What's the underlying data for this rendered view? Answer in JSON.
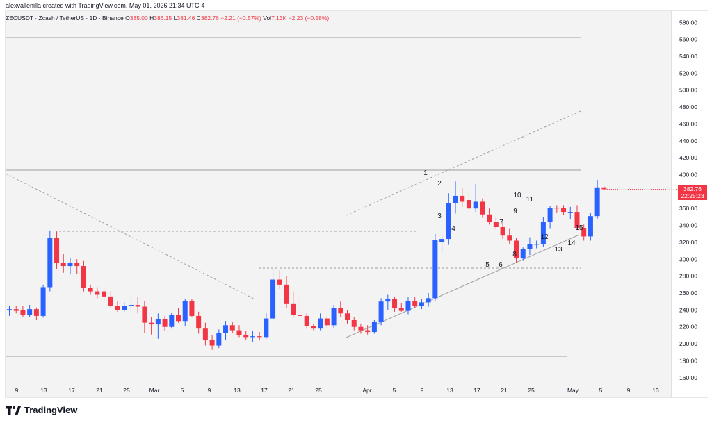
{
  "header": {
    "credit": "alexvallenilla created with TradingView.com, May 01, 2026 21:34 UTC-4",
    "symbol": "ZECUSDT · Zcash / TetherUS · 1D · Binance",
    "o_label": "O",
    "o_value": "385.00",
    "h_label": "H",
    "h_value": "386.15",
    "l_label": "L",
    "l_value": "381.46",
    "c_label": "C",
    "c_value": "382.76",
    "change": "−2.21 (−0.57%)",
    "vol_label": "Vol",
    "vol_value": "7.13K",
    "vol_change": "−2.23 (−0.58%)"
  },
  "last_price": {
    "price": "382.76",
    "countdown": "22:25:23"
  },
  "brand": {
    "name": "TradingView"
  },
  "colors": {
    "up": "#2962ff",
    "down": "#f23645",
    "background": "#f3f3f3",
    "line": "#9e9e9e"
  },
  "chart_data": {
    "type": "candlestick",
    "title": "ZECUSDT · Zcash / TetherUS · 1D · Binance",
    "ylim": [
      150,
      590
    ],
    "y_ticks": [
      "160.00",
      "180.00",
      "200.00",
      "220.00",
      "240.00",
      "260.00",
      "280.00",
      "300.00",
      "320.00",
      "340.00",
      "360.00",
      "380.00",
      "400.00",
      "420.00",
      "440.00",
      "460.00",
      "480.00",
      "500.00",
      "520.00",
      "540.00",
      "560.00",
      "580.00"
    ],
    "x_tick_labels": [
      "9",
      "13",
      "17",
      "21",
      "25",
      "Mar",
      "5",
      "9",
      "13",
      "17",
      "21",
      "25",
      "Apr",
      "5",
      "9",
      "13",
      "17",
      "21",
      "25",
      "May",
      "5",
      "9",
      "13"
    ],
    "grid": false,
    "candles": [
      {
        "o": 240,
        "h": 245,
        "l": 233,
        "c": 241
      },
      {
        "o": 241,
        "h": 245,
        "l": 236,
        "c": 239
      },
      {
        "o": 240,
        "h": 245,
        "l": 232,
        "c": 234
      },
      {
        "o": 234,
        "h": 246,
        "l": 232,
        "c": 241
      },
      {
        "o": 241,
        "h": 243,
        "l": 228,
        "c": 233
      },
      {
        "o": 233,
        "h": 270,
        "l": 231,
        "c": 267
      },
      {
        "o": 267,
        "h": 334,
        "l": 262,
        "c": 325
      },
      {
        "o": 325,
        "h": 333,
        "l": 288,
        "c": 296
      },
      {
        "o": 296,
        "h": 306,
        "l": 284,
        "c": 292
      },
      {
        "o": 292,
        "h": 302,
        "l": 282,
        "c": 296
      },
      {
        "o": 296,
        "h": 300,
        "l": 283,
        "c": 292
      },
      {
        "o": 292,
        "h": 298,
        "l": 262,
        "c": 266
      },
      {
        "o": 266,
        "h": 270,
        "l": 258,
        "c": 262
      },
      {
        "o": 262,
        "h": 267,
        "l": 254,
        "c": 258
      },
      {
        "o": 262,
        "h": 265,
        "l": 250,
        "c": 256
      },
      {
        "o": 256,
        "h": 262,
        "l": 242,
        "c": 245
      },
      {
        "o": 245,
        "h": 251,
        "l": 238,
        "c": 240
      },
      {
        "o": 240,
        "h": 249,
        "l": 238,
        "c": 245
      },
      {
        "o": 245,
        "h": 258,
        "l": 236,
        "c": 246
      },
      {
        "o": 246,
        "h": 255,
        "l": 236,
        "c": 244
      },
      {
        "o": 244,
        "h": 251,
        "l": 213,
        "c": 225
      },
      {
        "o": 225,
        "h": 232,
        "l": 211,
        "c": 223
      },
      {
        "o": 223,
        "h": 236,
        "l": 206,
        "c": 229
      },
      {
        "o": 229,
        "h": 233,
        "l": 215,
        "c": 220
      },
      {
        "o": 220,
        "h": 237,
        "l": 218,
        "c": 234
      },
      {
        "o": 234,
        "h": 242,
        "l": 225,
        "c": 227
      },
      {
        "o": 227,
        "h": 253,
        "l": 221,
        "c": 251
      },
      {
        "o": 251,
        "h": 253,
        "l": 232,
        "c": 233
      },
      {
        "o": 233,
        "h": 238,
        "l": 212,
        "c": 218
      },
      {
        "o": 218,
        "h": 225,
        "l": 198,
        "c": 205
      },
      {
        "o": 205,
        "h": 210,
        "l": 193,
        "c": 198
      },
      {
        "o": 198,
        "h": 217,
        "l": 195,
        "c": 213
      },
      {
        "o": 213,
        "h": 227,
        "l": 205,
        "c": 222
      },
      {
        "o": 222,
        "h": 226,
        "l": 213,
        "c": 216
      },
      {
        "o": 216,
        "h": 222,
        "l": 208,
        "c": 210
      },
      {
        "o": 210,
        "h": 215,
        "l": 205,
        "c": 208
      },
      {
        "o": 208,
        "h": 215,
        "l": 202,
        "c": 209
      },
      {
        "o": 209,
        "h": 214,
        "l": 204,
        "c": 208
      },
      {
        "o": 208,
        "h": 236,
        "l": 206,
        "c": 230
      },
      {
        "o": 230,
        "h": 288,
        "l": 228,
        "c": 276
      },
      {
        "o": 276,
        "h": 287,
        "l": 265,
        "c": 270
      },
      {
        "o": 270,
        "h": 280,
        "l": 242,
        "c": 247
      },
      {
        "o": 247,
        "h": 262,
        "l": 231,
        "c": 234
      },
      {
        "o": 234,
        "h": 257,
        "l": 230,
        "c": 233
      },
      {
        "o": 233,
        "h": 236,
        "l": 218,
        "c": 221
      },
      {
        "o": 221,
        "h": 224,
        "l": 216,
        "c": 218
      },
      {
        "o": 218,
        "h": 236,
        "l": 216,
        "c": 230
      },
      {
        "o": 230,
        "h": 233,
        "l": 218,
        "c": 222
      },
      {
        "o": 222,
        "h": 246,
        "l": 219,
        "c": 242
      },
      {
        "o": 242,
        "h": 250,
        "l": 232,
        "c": 236
      },
      {
        "o": 236,
        "h": 240,
        "l": 224,
        "c": 228
      },
      {
        "o": 228,
        "h": 232,
        "l": 216,
        "c": 220
      },
      {
        "o": 220,
        "h": 224,
        "l": 212,
        "c": 216
      },
      {
        "o": 216,
        "h": 222,
        "l": 211,
        "c": 214
      },
      {
        "o": 214,
        "h": 228,
        "l": 212,
        "c": 226
      },
      {
        "o": 226,
        "h": 254,
        "l": 222,
        "c": 250
      },
      {
        "o": 250,
        "h": 258,
        "l": 240,
        "c": 253
      },
      {
        "o": 253,
        "h": 256,
        "l": 238,
        "c": 242
      },
      {
        "o": 242,
        "h": 248,
        "l": 238,
        "c": 239
      },
      {
        "o": 239,
        "h": 255,
        "l": 235,
        "c": 251
      },
      {
        "o": 251,
        "h": 255,
        "l": 242,
        "c": 245
      },
      {
        "o": 245,
        "h": 253,
        "l": 241,
        "c": 249
      },
      {
        "o": 249,
        "h": 260,
        "l": 244,
        "c": 254
      },
      {
        "o": 254,
        "h": 330,
        "l": 250,
        "c": 323
      },
      {
        "o": 320,
        "h": 330,
        "l": 308,
        "c": 324
      },
      {
        "o": 324,
        "h": 378,
        "l": 317,
        "c": 366
      },
      {
        "o": 366,
        "h": 392,
        "l": 354,
        "c": 375
      },
      {
        "o": 375,
        "h": 385,
        "l": 362,
        "c": 368
      },
      {
        "o": 370,
        "h": 379,
        "l": 354,
        "c": 360
      },
      {
        "o": 360,
        "h": 389,
        "l": 356,
        "c": 368
      },
      {
        "o": 368,
        "h": 372,
        "l": 349,
        "c": 353
      },
      {
        "o": 353,
        "h": 360,
        "l": 341,
        "c": 344
      },
      {
        "o": 344,
        "h": 350,
        "l": 335,
        "c": 338
      },
      {
        "o": 338,
        "h": 344,
        "l": 324,
        "c": 328
      },
      {
        "o": 328,
        "h": 336,
        "l": 318,
        "c": 322
      },
      {
        "o": 322,
        "h": 325,
        "l": 296,
        "c": 301
      },
      {
        "o": 301,
        "h": 314,
        "l": 298,
        "c": 312
      },
      {
        "o": 312,
        "h": 326,
        "l": 305,
        "c": 318
      },
      {
        "o": 318,
        "h": 322,
        "l": 313,
        "c": 318
      },
      {
        "o": 318,
        "h": 350,
        "l": 315,
        "c": 344
      },
      {
        "o": 344,
        "h": 363,
        "l": 336,
        "c": 361
      },
      {
        "o": 361,
        "h": 364,
        "l": 355,
        "c": 360
      },
      {
        "o": 361,
        "h": 364,
        "l": 352,
        "c": 356
      },
      {
        "o": 356,
        "h": 362,
        "l": 347,
        "c": 356
      },
      {
        "o": 356,
        "h": 364,
        "l": 335,
        "c": 337
      },
      {
        "o": 337,
        "h": 341,
        "l": 322,
        "c": 327
      },
      {
        "o": 327,
        "h": 355,
        "l": 322,
        "c": 351
      },
      {
        "o": 351,
        "h": 394,
        "l": 348,
        "c": 385
      },
      {
        "o": 385,
        "h": 386.15,
        "l": 381.46,
        "c": 382.76
      }
    ],
    "annotations": [
      "1",
      "2",
      "3",
      "4",
      "5",
      "6",
      "7",
      "8",
      "9",
      "10",
      "11",
      "12",
      "13",
      "14",
      "15"
    ]
  }
}
